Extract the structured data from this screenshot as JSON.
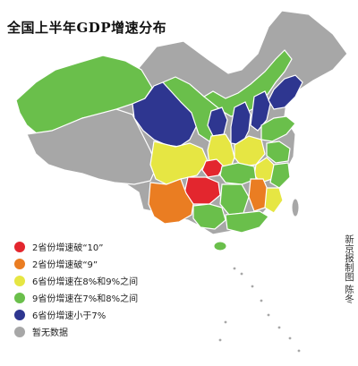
{
  "title": "全国上半年GDP增速分布",
  "legend": [
    {
      "label": "2省份增速破“10”",
      "color": "#e3262e"
    },
    {
      "label": "2省份增速破“9”",
      "color": "#ea7d22"
    },
    {
      "label": "6省份增速在8%和9%之间",
      "color": "#e6e643"
    },
    {
      "label": "9省份增速在7%和8%之间",
      "color": "#6abf4b"
    },
    {
      "label": "6省份增速小于7%",
      "color": "#2e3690"
    },
    {
      "label": "暂无数据",
      "color": "#a7a7a7"
    }
  ],
  "credit": "新京报制图 陈冬",
  "colors": {
    "no_data": "#a7a7a7",
    "green": "#6abf4b",
    "yellow": "#e6e643",
    "orange": "#ea7d22",
    "red": "#e3262e",
    "blue": "#2e3690",
    "border": "#ffffff"
  }
}
